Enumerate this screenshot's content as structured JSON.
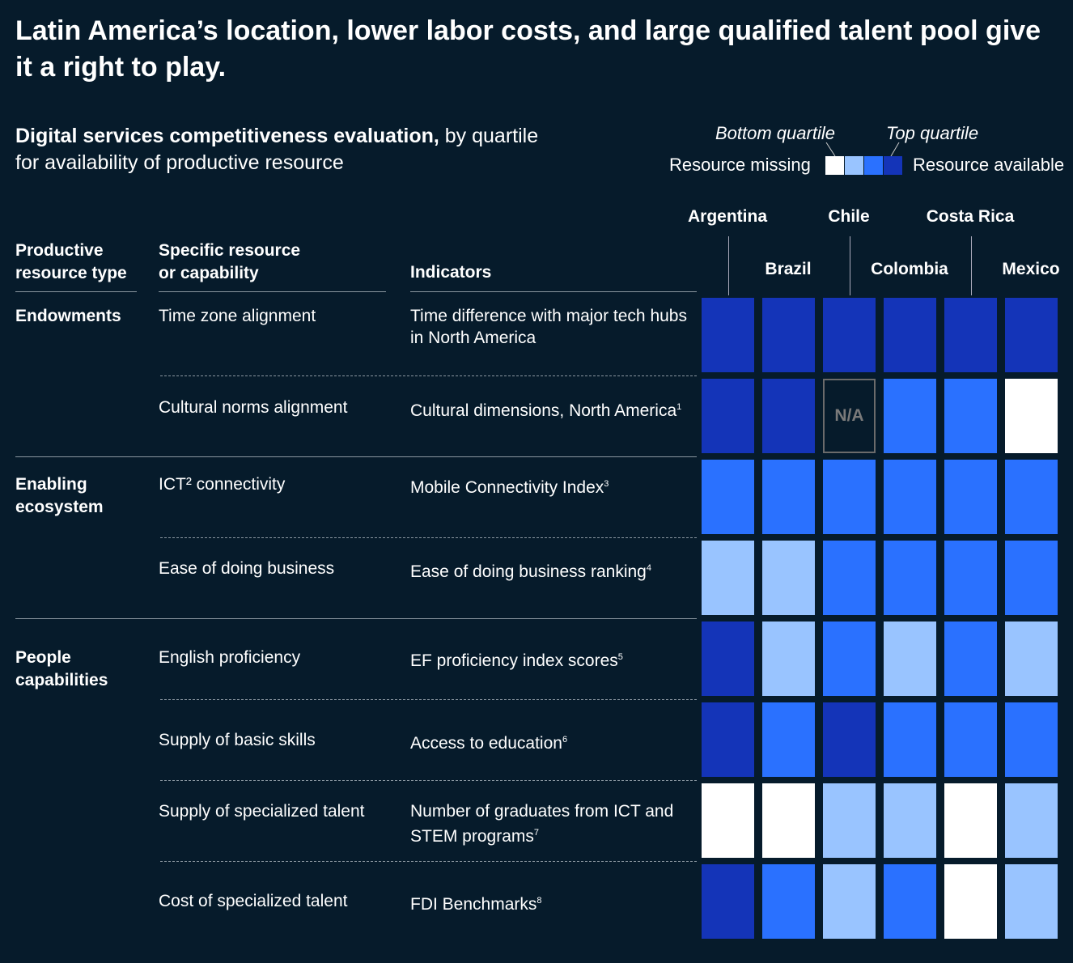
{
  "title": "Latin America’s location, lower labor costs, and large qualified talent pool give it a right to play.",
  "subtitle": {
    "bold": "Digital services competitiveness evaluation,",
    "rest1": " by quartile",
    "rest2": "for availability of productive resource"
  },
  "legend": {
    "bottom": "Bottom quartile",
    "top": "Top quartile",
    "missing": "Resource missing",
    "available": "Resource available"
  },
  "headers": {
    "type": "Productive resource type",
    "resource": "Specific resource or capability",
    "indicators": "Indicators"
  },
  "colors": {
    "background": "#061b2b",
    "q1": "#ffffff",
    "q2": "#99c4ff",
    "q3": "#2a71ff",
    "q4": "#1434b8"
  },
  "chart_data": {
    "type": "heatmap",
    "title": "Digital services competitiveness evaluation, by quartile for availability of productive resource",
    "scale": "1 = bottom quartile (resource missing), 4 = top quartile (resource available), null = N/A",
    "na_label": "N/A",
    "countries": [
      "Argentina",
      "Brazil",
      "Chile",
      "Colombia",
      "Costa Rica",
      "Mexico"
    ],
    "groups": [
      {
        "label": "Endowments",
        "rows": [
          0,
          1
        ]
      },
      {
        "label": "Enabling ecosystem",
        "rows": [
          2,
          3
        ]
      },
      {
        "label": "People capabilities",
        "rows": [
          4,
          5,
          6,
          7
        ]
      }
    ],
    "rows": [
      {
        "resource": "Time zone alignment",
        "indicator": "Time difference with major tech hubs in North America",
        "sup": "",
        "values": [
          4,
          4,
          4,
          4,
          4,
          4
        ]
      },
      {
        "resource": "Cultural norms alignment",
        "indicator": "Cultural dimensions, North America",
        "sup": "1",
        "values": [
          4,
          4,
          null,
          3,
          3,
          1
        ]
      },
      {
        "resource": "ICT² connectivity",
        "indicator": "Mobile Connectivity Index",
        "sup": "3",
        "values": [
          3,
          3,
          3,
          3,
          3,
          3
        ]
      },
      {
        "resource": "Ease of doing business",
        "indicator": "Ease of doing business ranking",
        "sup": "4",
        "values": [
          2,
          2,
          3,
          3,
          3,
          3
        ]
      },
      {
        "resource": "English proficiency",
        "indicator": "EF proficiency index scores",
        "sup": "5",
        "values": [
          4,
          2,
          3,
          2,
          3,
          2
        ]
      },
      {
        "resource": "Supply of basic skills",
        "indicator": "Access to education",
        "sup": "6",
        "values": [
          4,
          3,
          4,
          3,
          3,
          3
        ]
      },
      {
        "resource": "Supply of specialized talent",
        "indicator": "Number of graduates from ICT and STEM programs",
        "sup": "7",
        "values": [
          1,
          1,
          2,
          2,
          1,
          2
        ]
      },
      {
        "resource": "Cost of specialized talent",
        "indicator": "FDI Benchmarks",
        "sup": "8",
        "values": [
          4,
          3,
          2,
          3,
          1,
          2
        ]
      }
    ]
  }
}
